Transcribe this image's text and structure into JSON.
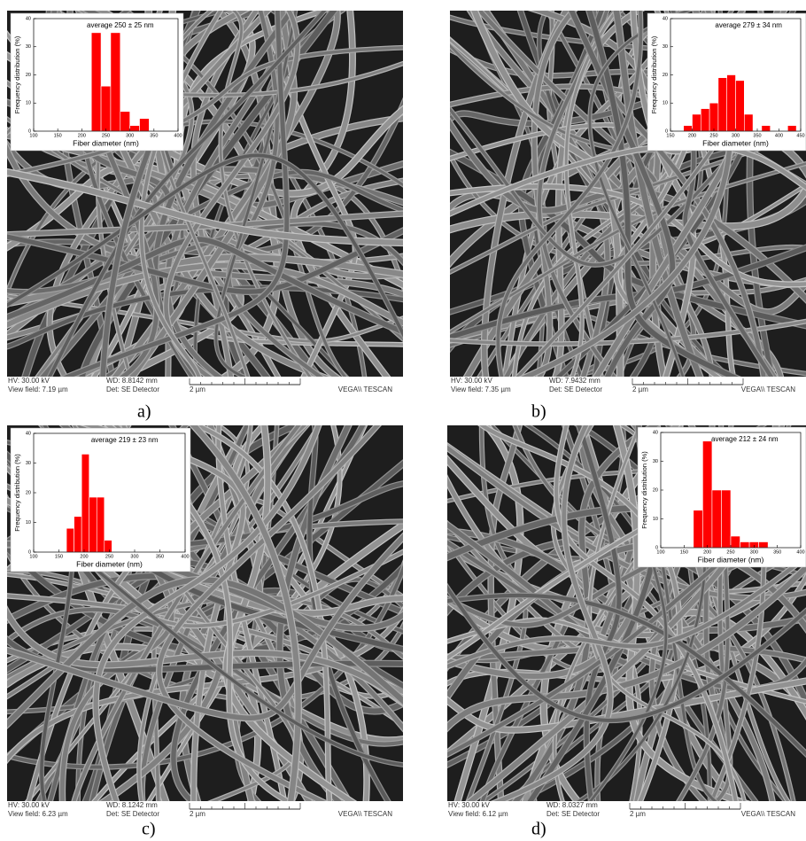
{
  "chart_data": [
    {
      "type": "histogram",
      "title": "average 250 ± 25 nm",
      "x_label": "Fiber diameter (nm)",
      "y_label": "Frequency distribution (%)",
      "color": "#ff0000",
      "bins": [
        220,
        240,
        260,
        280,
        300,
        320,
        340
      ],
      "values": [
        35,
        16,
        35,
        7,
        2,
        4.5
      ],
      "xlim": [
        100,
        400
      ],
      "xticks": [
        100,
        150,
        200,
        250,
        300,
        350,
        400
      ],
      "ylim": [
        0,
        40
      ],
      "yticks": [
        0,
        10,
        20,
        30,
        40
      ]
    },
    {
      "type": "histogram",
      "title": "average 279 ± 34 nm",
      "x_label": "Fiber diameter (nm)",
      "y_label": "Frequency distribution (%)",
      "color": "#ff0000",
      "bins": [
        180,
        200,
        220,
        240,
        260,
        280,
        300,
        320,
        340,
        360,
        380,
        400,
        420,
        440
      ],
      "values": [
        2,
        6,
        8,
        10,
        19,
        20,
        18,
        6,
        0,
        2,
        0,
        0,
        2
      ],
      "xlim": [
        150,
        450
      ],
      "xticks": [
        150,
        200,
        250,
        300,
        350,
        400,
        450
      ],
      "ylim": [
        0,
        40
      ],
      "yticks": [
        0,
        10,
        20,
        30,
        40
      ]
    },
    {
      "type": "histogram",
      "title": "average 219 ± 23 nm",
      "x_label": "Fiber diameter (nm)",
      "y_label": "Frequency distribution (%)",
      "color": "#ff0000",
      "bins": [
        165,
        180,
        195,
        210,
        225,
        240,
        255
      ],
      "values": [
        8,
        12,
        33,
        18.5,
        18.5,
        4
      ],
      "xlim": [
        100,
        400
      ],
      "xticks": [
        100,
        150,
        200,
        250,
        300,
        350,
        400
      ],
      "ylim": [
        0,
        40
      ],
      "yticks": [
        0,
        10,
        20,
        30,
        40
      ]
    },
    {
      "type": "histogram",
      "title": "average 212 ± 24 nm",
      "x_label": "Fiber diameter (nm)",
      "y_label": "Frequency distribution (%)",
      "color": "#ff0000",
      "bins": [
        170,
        190,
        210,
        230,
        250,
        270,
        290,
        310,
        330
      ],
      "values": [
        13,
        37,
        20,
        20,
        4,
        2,
        2,
        2
      ],
      "xlim": [
        100,
        400
      ],
      "xticks": [
        100,
        150,
        200,
        250,
        300,
        350,
        400
      ],
      "ylim": [
        0,
        40
      ],
      "yticks": [
        0,
        10,
        20,
        30,
        40
      ]
    }
  ],
  "panels": [
    {
      "label": "a)",
      "hv": "HV:  30.00 kV",
      "view_field": "View field: 7.19 µm",
      "wd": "WD: 8.8142 mm",
      "det": "Det: SE Detector",
      "scale": "2 µm",
      "brand": "VEGA\\\\ TESCAN"
    },
    {
      "label": "b)",
      "hv": "HV:  30.00 kV",
      "view_field": "View field: 7.35 µm",
      "wd": "WD: 7.9432 mm",
      "det": "Det: SE Detector",
      "scale": "2 µm",
      "brand": "VEGA\\\\ TESCAN"
    },
    {
      "label": "c)",
      "hv": "HV:  30.00 kV",
      "view_field": "View field: 6.23 µm",
      "wd": "WD: 8.1242 mm",
      "det": "Det: SE Detector",
      "scale": "2 µm",
      "brand": "VEGA\\\\ TESCAN"
    },
    {
      "label": "d)",
      "hv": "HV:  30.00 kV",
      "view_field": "View field: 6.12 µm",
      "wd": "WD: 8.0327 mm",
      "det": "Det: SE Detector",
      "scale": "2 µm",
      "brand": "VEGA\\\\ TESCAN"
    }
  ]
}
